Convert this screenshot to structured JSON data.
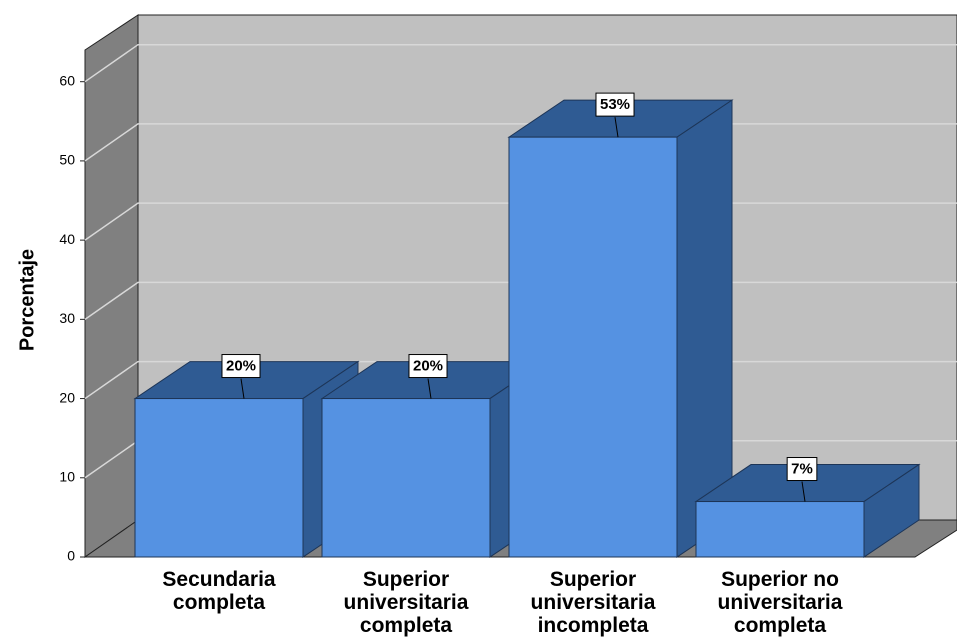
{
  "chart_data": {
    "type": "bar3d",
    "y_label": "Porcentaje",
    "categories": [
      "Secundaria completa",
      "Superior universitaria completa",
      "Superior universitaria incompleta",
      "Superior no universitaria completa"
    ],
    "values": [
      20,
      20,
      53,
      7
    ],
    "value_labels": [
      "20%",
      "20%",
      "53%",
      "7%"
    ],
    "color": "#5592e2",
    "ylim": [
      0,
      64
    ],
    "yticks": [
      0,
      10,
      20,
      30,
      40,
      50,
      60
    ],
    "grid": true
  }
}
